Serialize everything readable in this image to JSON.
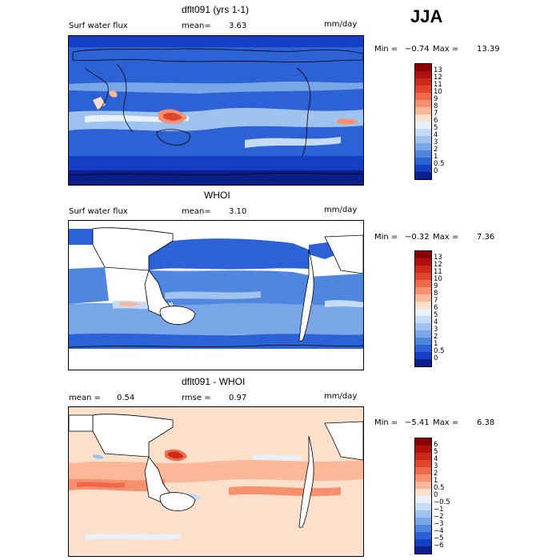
{
  "season": "JJA",
  "panels": [
    {
      "title": "dflt091 (yrs 1-1)",
      "left_label": "Surf water flux",
      "stat_label": "mean=",
      "stat_value": "3.63",
      "units": "mm/day",
      "min_label": "Min =",
      "min_value": "−0.74",
      "max_label": "Max =",
      "max_value": "13.39",
      "colorbar": {
        "labels": [
          "13",
          "12",
          "11",
          "10",
          "9",
          "8",
          "7",
          "6",
          "5",
          "4",
          "3",
          "2",
          "1",
          "0.5",
          "0"
        ],
        "colors": [
          "#8b0000",
          "#b01010",
          "#cc2a1a",
          "#e0452e",
          "#ee6a4c",
          "#f5916f",
          "#fab898",
          "#fde0cc",
          "#e8f0fb",
          "#c6dbf5",
          "#9fc3ee",
          "#78a6e6",
          "#4f86de",
          "#2d62d6",
          "#143fc4",
          "#0a1f8c"
        ]
      }
    },
    {
      "title": "WHOI",
      "left_label": "Surf water flux",
      "stat_label": "mean=",
      "stat_value": "3.10",
      "units": "mm/day",
      "min_label": "Min =",
      "min_value": "−0.32",
      "max_label": "Max =",
      "max_value": "7.36",
      "colorbar": {
        "labels": [
          "13",
          "12",
          "11",
          "10",
          "9",
          "8",
          "7",
          "6",
          "5",
          "4",
          "3",
          "2",
          "1",
          "0.5",
          "0"
        ],
        "colors": [
          "#8b0000",
          "#b01010",
          "#cc2a1a",
          "#e0452e",
          "#ee6a4c",
          "#f5916f",
          "#fab898",
          "#fde0cc",
          "#e8f0fb",
          "#c6dbf5",
          "#9fc3ee",
          "#78a6e6",
          "#4f86de",
          "#2d62d6",
          "#143fc4",
          "#0a1f8c"
        ]
      }
    },
    {
      "title": "dflt091 - WHOI",
      "left_label": "mean =",
      "left_value": "0.54",
      "stat_label": "rmse =",
      "stat_value": "0.97",
      "units": "mm/day",
      "min_label": "Min =",
      "min_value": "−5.41",
      "max_label": "Max =",
      "max_value": "6.38",
      "colorbar": {
        "labels": [
          "6",
          "5",
          "4",
          "3",
          "2",
          "1",
          "0.5",
          "0",
          "−0.5",
          "−1",
          "−2",
          "−3",
          "−4",
          "−5",
          "−6"
        ],
        "colors": [
          "#8b0000",
          "#b01010",
          "#cc2a1a",
          "#e0452e",
          "#ee6a4c",
          "#f5916f",
          "#fab898",
          "#fde0cc",
          "#e8f0fb",
          "#c6dbf5",
          "#9fc3ee",
          "#78a6e6",
          "#4f86de",
          "#2d62d6",
          "#143fc4",
          "#0a1f8c"
        ]
      }
    }
  ]
}
